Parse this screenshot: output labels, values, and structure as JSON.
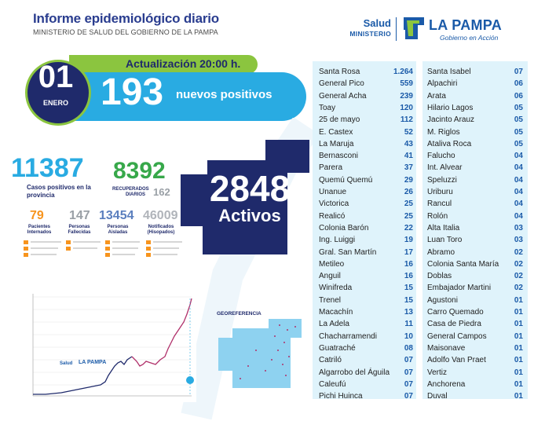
{
  "header": {
    "title": "Informe epidemiológico diario",
    "subtitle": "MINISTERIO DE SALUD DEL GOBIERNO DE LA PAMPA"
  },
  "logo": {
    "salud": "Salud",
    "ministerio": "MINISTERIO",
    "la_pampa": "LA PAMPA",
    "gobierno": "Gobierno en Acción"
  },
  "update": {
    "label": "Actualización 20:00 h.",
    "day": "01",
    "month": "ENERO",
    "new_positives": "193",
    "new_positives_label": "nuevos positivos"
  },
  "stats": {
    "total_cases": "11387",
    "total_cases_label": "Casos positivos en la provincia",
    "recovered": "8392",
    "recovered_label": "RECUPERADOS",
    "daily_label": "DIARIOS",
    "daily": "162",
    "hospitalized": "79",
    "hospitalized_label": "Pacientes Internados",
    "deceased": "147",
    "deceased_label": "Personas Fallecidas",
    "isolated": "13454",
    "isolated_label": "Personas Aisladas",
    "notified": "46009",
    "notified_label": "Notificados (Hisopados)",
    "active": "2848",
    "active_label": "Activos"
  },
  "georef": {
    "title": "GEOREFERENCIA"
  },
  "chart_logo": {
    "salud": "Salud",
    "la_pampa": "LA PAMPA"
  },
  "departments_left": [
    {
      "name": "Santa Rosa",
      "value": "1.264"
    },
    {
      "name": "General Pico",
      "value": "559"
    },
    {
      "name": "General Acha",
      "value": "239"
    },
    {
      "name": "Toay",
      "value": "120"
    },
    {
      "name": "25 de mayo",
      "value": "112"
    },
    {
      "name": "E. Castex",
      "value": "52"
    },
    {
      "name": "La Maruja",
      "value": "43"
    },
    {
      "name": "Bernasconi",
      "value": "41"
    },
    {
      "name": "Parera",
      "value": "37"
    },
    {
      "name": "Quemú Quemú",
      "value": "29"
    },
    {
      "name": "Unanue",
      "value": "26"
    },
    {
      "name": "Victorica",
      "value": "25"
    },
    {
      "name": "Realicó",
      "value": "25"
    },
    {
      "name": "Colonia Barón",
      "value": "22"
    },
    {
      "name": "Ing. Luiggi",
      "value": "19"
    },
    {
      "name": "Gral. San Martín",
      "value": "17"
    },
    {
      "name": "Metileo",
      "value": "16"
    },
    {
      "name": "Anguil",
      "value": "16"
    },
    {
      "name": "Winifreda",
      "value": "15"
    },
    {
      "name": "Trenel",
      "value": "15"
    },
    {
      "name": "Macachín",
      "value": "13"
    },
    {
      "name": "La Adela",
      "value": "11"
    },
    {
      "name": "Chacharramendi",
      "value": "10"
    },
    {
      "name": "Guatraché",
      "value": "08"
    },
    {
      "name": "Catriló",
      "value": "07"
    },
    {
      "name": "Algarrobo del Águila",
      "value": "07"
    },
    {
      "name": "Caleufú",
      "value": "07"
    },
    {
      "name": "Pichi Huinca",
      "value": "07"
    }
  ],
  "departments_right": [
    {
      "name": "Santa Isabel",
      "value": "07"
    },
    {
      "name": "Alpachiri",
      "value": "06"
    },
    {
      "name": "Arata",
      "value": "06"
    },
    {
      "name": "Hilario Lagos",
      "value": "05"
    },
    {
      "name": "Jacinto Arauz",
      "value": "05"
    },
    {
      "name": "M. Riglos",
      "value": "05"
    },
    {
      "name": "Ataliva Roca",
      "value": "05"
    },
    {
      "name": "Falucho",
      "value": "04"
    },
    {
      "name": "Int. Alvear",
      "value": "04"
    },
    {
      "name": "Speluzzi",
      "value": "04"
    },
    {
      "name": "Uriburu",
      "value": "04"
    },
    {
      "name": "Rancul",
      "value": "04"
    },
    {
      "name": "Rolón",
      "value": "04"
    },
    {
      "name": "Alta Italia",
      "value": "03"
    },
    {
      "name": "Luan Toro",
      "value": "03"
    },
    {
      "name": "Abramo",
      "value": "02"
    },
    {
      "name": "Colonia Santa María",
      "value": "02"
    },
    {
      "name": "Doblas",
      "value": "02"
    },
    {
      "name": "Embajador Martini",
      "value": "02"
    },
    {
      "name": "Agustoni",
      "value": "01"
    },
    {
      "name": "Carro Quemado",
      "value": "01"
    },
    {
      "name": "Casa de Piedra",
      "value": "01"
    },
    {
      "name": "General Campos",
      "value": "01"
    },
    {
      "name": "Maisonave",
      "value": "01"
    },
    {
      "name": "Adolfo Van Praet",
      "value": "01"
    },
    {
      "name": "Vertiz",
      "value": "01"
    },
    {
      "name": "Anchorena",
      "value": "01"
    },
    {
      "name": "Duval",
      "value": "01"
    }
  ],
  "colors": {
    "navy": "#1f2a6b",
    "cyan": "#29abe2",
    "green": "#8bc53f",
    "orange": "#f7941d"
  }
}
